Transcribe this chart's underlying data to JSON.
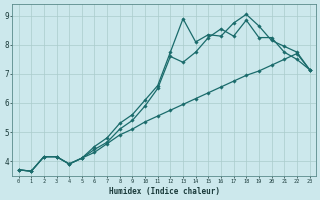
{
  "xlabel": "Humidex (Indice chaleur)",
  "bg_color": "#cce8ec",
  "grid_color": "#aacccc",
  "line_color": "#1a6b6b",
  "xlim": [
    -0.5,
    23.5
  ],
  "ylim": [
    3.5,
    9.4
  ],
  "xticks": [
    0,
    1,
    2,
    3,
    4,
    5,
    6,
    7,
    8,
    9,
    10,
    11,
    12,
    13,
    14,
    15,
    16,
    17,
    18,
    19,
    20,
    21,
    22,
    23
  ],
  "yticks": [
    4,
    5,
    6,
    7,
    8,
    9
  ],
  "series": {
    "line_high": [
      3.7,
      3.65,
      4.15,
      4.15,
      3.9,
      4.1,
      4.5,
      4.8,
      5.3,
      5.6,
      6.1,
      6.6,
      7.75,
      8.9,
      8.1,
      8.35,
      8.3,
      8.75,
      9.05,
      8.65,
      8.15,
      7.95,
      7.75,
      7.15
    ],
    "line_mid": [
      3.7,
      3.65,
      4.15,
      4.15,
      3.9,
      4.1,
      4.4,
      4.65,
      5.1,
      5.4,
      5.9,
      6.5,
      7.6,
      7.4,
      7.75,
      8.25,
      8.55,
      8.3,
      8.85,
      8.25,
      8.25,
      7.75,
      7.5,
      7.15
    ],
    "line_low": [
      3.7,
      3.65,
      4.15,
      4.15,
      3.9,
      4.1,
      4.3,
      4.6,
      4.9,
      5.1,
      5.35,
      5.55,
      5.75,
      5.95,
      6.15,
      6.35,
      6.55,
      6.75,
      6.95,
      7.1,
      7.3,
      7.5,
      7.7,
      7.15
    ]
  }
}
